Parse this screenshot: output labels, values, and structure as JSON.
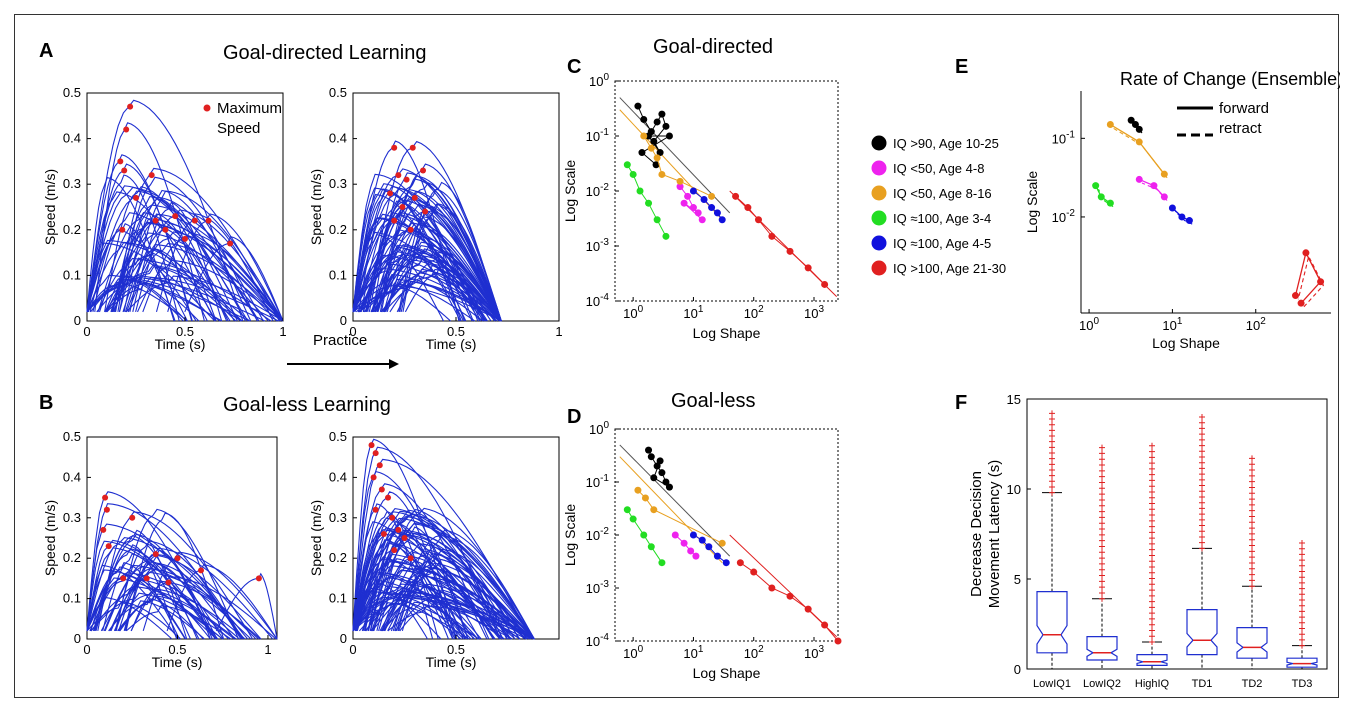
{
  "colors": {
    "curve": "#1f2fd0",
    "peak": "#e02020",
    "frame": "#333333"
  },
  "panels": {
    "A": {
      "letter": "A",
      "title": "Goal-directed Learning"
    },
    "B": {
      "letter": "B",
      "title": "Goal-less Learning"
    },
    "C": {
      "letter": "C",
      "title": "Goal-directed"
    },
    "D": {
      "letter": "D",
      "title": "Goal-less"
    },
    "E": {
      "letter": "E",
      "title": "Rate of Change (Ensemble)"
    },
    "F": {
      "letter": "F"
    }
  },
  "practice_label": "Practice",
  "legend_A": {
    "line1": "Maximum",
    "line2": "Speed"
  },
  "legend_C": [
    {
      "label": "IQ >90,    Age 10-25",
      "color": "#000000"
    },
    {
      "label": "IQ <50,    Age 4-8",
      "color": "#ee22ee"
    },
    {
      "label": "IQ <50,    Age 8-16",
      "color": "#e8a020"
    },
    {
      "label": "IQ ≈100,   Age 3-4",
      "color": "#22dd22"
    },
    {
      "label": "IQ ≈100,   Age 4-5",
      "color": "#1010dd"
    },
    {
      "label": "IQ >100, Age 21-30",
      "color": "#e02020"
    }
  ],
  "legend_E": {
    "forward": "forward",
    "retract": "retract"
  },
  "axis_text": {
    "time": "Time (s)",
    "speed": "Speed (m/s)",
    "log_scale": "Log Scale",
    "log_shape": "Log Shape",
    "f_ylabel1": "Decrease Decision",
    "f_ylabel2": "Movement Latency (s)",
    "speed_ticks": [
      "0",
      "0.1",
      "0.2",
      "0.3",
      "0.4",
      "0.5"
    ],
    "time_ticks": [
      "0",
      "0.5",
      "1"
    ],
    "time_ticks_short": [
      "0",
      "0.5"
    ],
    "log_y_ticks_C": [
      "10^0",
      "10^-1",
      "10^-2",
      "10^-3",
      "10^-4"
    ],
    "log_x_ticks": [
      "10^0",
      "10^1",
      "10^2",
      "10^3"
    ],
    "log_y_ticks_E": [
      "10^-1",
      "10^-2"
    ],
    "log_x_ticks_E": [
      "10^0",
      "10^1",
      "10^2"
    ],
    "f_y_ticks": [
      "0",
      "5",
      "10",
      "15"
    ]
  },
  "chart_data": [
    {
      "type": "line",
      "panel": "A-left",
      "xlabel": "Time (s)",
      "ylabel": "Speed (m/s)",
      "xlim": [
        0,
        1
      ],
      "ylim": [
        0,
        0.5
      ],
      "peaks": [
        {
          "x": 0.22,
          "y": 0.47
        },
        {
          "x": 0.2,
          "y": 0.42
        },
        {
          "x": 0.17,
          "y": 0.35
        },
        {
          "x": 0.19,
          "y": 0.33
        },
        {
          "x": 0.33,
          "y": 0.32
        },
        {
          "x": 0.25,
          "y": 0.27
        },
        {
          "x": 0.45,
          "y": 0.23
        },
        {
          "x": 0.55,
          "y": 0.22
        },
        {
          "x": 0.62,
          "y": 0.22
        },
        {
          "x": 0.73,
          "y": 0.17
        },
        {
          "x": 0.35,
          "y": 0.22
        },
        {
          "x": 0.18,
          "y": 0.2
        },
        {
          "x": 0.4,
          "y": 0.2
        },
        {
          "x": 0.5,
          "y": 0.18
        }
      ]
    },
    {
      "type": "line",
      "panel": "A-right",
      "xlabel": "Time (s)",
      "ylabel": "Speed (m/s)",
      "xlim": [
        0,
        1
      ],
      "ylim": [
        0,
        0.5
      ],
      "peaks": [
        {
          "x": 0.2,
          "y": 0.38
        },
        {
          "x": 0.29,
          "y": 0.38
        },
        {
          "x": 0.34,
          "y": 0.33
        },
        {
          "x": 0.22,
          "y": 0.32
        },
        {
          "x": 0.26,
          "y": 0.31
        },
        {
          "x": 0.18,
          "y": 0.28
        },
        {
          "x": 0.3,
          "y": 0.27
        },
        {
          "x": 0.24,
          "y": 0.25
        },
        {
          "x": 0.2,
          "y": 0.22
        },
        {
          "x": 0.35,
          "y": 0.24
        },
        {
          "x": 0.28,
          "y": 0.2
        }
      ]
    },
    {
      "type": "line",
      "panel": "B-left",
      "xlabel": "Time (s)",
      "ylabel": "Speed (m/s)",
      "xlim": [
        0,
        1.05
      ],
      "ylim": [
        0,
        0.5
      ],
      "peaks": [
        {
          "x": 0.1,
          "y": 0.35
        },
        {
          "x": 0.11,
          "y": 0.32
        },
        {
          "x": 0.25,
          "y": 0.3
        },
        {
          "x": 0.09,
          "y": 0.27
        },
        {
          "x": 0.12,
          "y": 0.23
        },
        {
          "x": 0.38,
          "y": 0.21
        },
        {
          "x": 0.5,
          "y": 0.2
        },
        {
          "x": 0.63,
          "y": 0.17
        },
        {
          "x": 0.95,
          "y": 0.15
        },
        {
          "x": 0.2,
          "y": 0.15
        },
        {
          "x": 0.33,
          "y": 0.15
        },
        {
          "x": 0.45,
          "y": 0.14
        }
      ]
    },
    {
      "type": "line",
      "panel": "B-right",
      "xlabel": "Time (s)",
      "ylabel": "Speed (m/s)",
      "xlim": [
        0,
        1
      ],
      "ylim": [
        0,
        0.5
      ],
      "peaks": [
        {
          "x": 0.09,
          "y": 0.48
        },
        {
          "x": 0.11,
          "y": 0.46
        },
        {
          "x": 0.13,
          "y": 0.43
        },
        {
          "x": 0.1,
          "y": 0.4
        },
        {
          "x": 0.14,
          "y": 0.37
        },
        {
          "x": 0.17,
          "y": 0.35
        },
        {
          "x": 0.11,
          "y": 0.32
        },
        {
          "x": 0.19,
          "y": 0.3
        },
        {
          "x": 0.22,
          "y": 0.27
        },
        {
          "x": 0.15,
          "y": 0.26
        },
        {
          "x": 0.25,
          "y": 0.25
        },
        {
          "x": 0.2,
          "y": 0.22
        },
        {
          "x": 0.28,
          "y": 0.2
        }
      ]
    },
    {
      "type": "scatter",
      "panel": "C",
      "title": "Goal-directed",
      "xlabel": "Log Shape",
      "ylabel": "Log Scale",
      "xlog": true,
      "ylog": true,
      "xlim": [
        0.5,
        2500
      ],
      "ylim": [
        0.0001,
        1
      ],
      "series": [
        {
          "name": "IQ >90,    Age 10-25",
          "color": "#000000",
          "points": [
            [
              1.2,
              0.35
            ],
            [
              1.5,
              0.2
            ],
            [
              2,
              0.12
            ],
            [
              2.5,
              0.18
            ],
            [
              3,
              0.25
            ],
            [
              3.5,
              0.15
            ],
            [
              2.2,
              0.08
            ],
            [
              2.8,
              0.05
            ],
            [
              1.8,
              0.1
            ],
            [
              4,
              0.1
            ],
            [
              1.4,
              0.05
            ],
            [
              2.4,
              0.03
            ]
          ]
        },
        {
          "name": "IQ <50,    Age 4-8",
          "color": "#ee22ee",
          "points": [
            [
              6,
              0.012
            ],
            [
              8,
              0.008
            ],
            [
              10,
              0.005
            ],
            [
              12,
              0.004
            ],
            [
              7,
              0.006
            ],
            [
              14,
              0.003
            ]
          ]
        },
        {
          "name": "IQ <50,    Age 8-16",
          "color": "#e8a020",
          "points": [
            [
              1.5,
              0.1
            ],
            [
              2,
              0.06
            ],
            [
              2.5,
              0.04
            ],
            [
              3,
              0.02
            ],
            [
              6,
              0.015
            ],
            [
              20,
              0.008
            ]
          ]
        },
        {
          "name": "IQ ≈100,   Age 3-4",
          "color": "#22dd22",
          "points": [
            [
              0.8,
              0.03
            ],
            [
              1,
              0.02
            ],
            [
              1.3,
              0.01
            ],
            [
              1.8,
              0.006
            ],
            [
              2.5,
              0.003
            ],
            [
              3.5,
              0.0015
            ]
          ]
        },
        {
          "name": "IQ ≈100,   Age 4-5",
          "color": "#1010dd",
          "points": [
            [
              10,
              0.01
            ],
            [
              15,
              0.007
            ],
            [
              20,
              0.005
            ],
            [
              25,
              0.004
            ],
            [
              30,
              0.003
            ]
          ]
        },
        {
          "name": "IQ >100, Age 21-30",
          "color": "#e02020",
          "points": [
            [
              50,
              0.008
            ],
            [
              80,
              0.005
            ],
            [
              120,
              0.003
            ],
            [
              200,
              0.0015
            ],
            [
              400,
              0.0008
            ],
            [
              800,
              0.0004
            ],
            [
              1500,
              0.0002
            ]
          ]
        }
      ]
    },
    {
      "type": "scatter",
      "panel": "D",
      "title": "Goal-less",
      "xlabel": "Log Shape",
      "ylabel": "Log Scale",
      "xlog": true,
      "ylog": true,
      "xlim": [
        0.5,
        2500
      ],
      "ylim": [
        0.0001,
        1
      ],
      "series": [
        {
          "name": "IQ >90,    Age 10-25",
          "color": "#000000",
          "points": [
            [
              1.8,
              0.4
            ],
            [
              2,
              0.3
            ],
            [
              2.5,
              0.2
            ],
            [
              3,
              0.15
            ],
            [
              3.5,
              0.1
            ],
            [
              4,
              0.08
            ],
            [
              2.2,
              0.12
            ],
            [
              2.8,
              0.25
            ]
          ]
        },
        {
          "name": "IQ <50,    Age 4-8",
          "color": "#ee22ee",
          "points": [
            [
              5,
              0.01
            ],
            [
              7,
              0.007
            ],
            [
              9,
              0.005
            ],
            [
              11,
              0.004
            ]
          ]
        },
        {
          "name": "IQ <50,    Age 8-16",
          "color": "#e8a020",
          "points": [
            [
              1.2,
              0.07
            ],
            [
              1.6,
              0.05
            ],
            [
              2.2,
              0.03
            ],
            [
              30,
              0.007
            ]
          ]
        },
        {
          "name": "IQ ≈100,   Age 3-4",
          "color": "#22dd22",
          "points": [
            [
              0.8,
              0.03
            ],
            [
              1,
              0.02
            ],
            [
              1.5,
              0.01
            ],
            [
              2,
              0.006
            ],
            [
              3,
              0.003
            ]
          ]
        },
        {
          "name": "IQ ≈100,   Age 4-5",
          "color": "#1010dd",
          "points": [
            [
              10,
              0.01
            ],
            [
              14,
              0.008
            ],
            [
              18,
              0.006
            ],
            [
              25,
              0.004
            ],
            [
              35,
              0.003
            ]
          ]
        },
        {
          "name": "IQ >100, Age 21-30",
          "color": "#e02020",
          "points": [
            [
              60,
              0.003
            ],
            [
              100,
              0.002
            ],
            [
              200,
              0.001
            ],
            [
              400,
              0.0007
            ],
            [
              800,
              0.0004
            ],
            [
              1500,
              0.0002
            ],
            [
              2500,
              0.0001
            ]
          ]
        }
      ]
    },
    {
      "type": "line",
      "panel": "E",
      "title": "Rate of Change (Ensemble)",
      "xlabel": "Log Shape",
      "ylabel": "Log Scale",
      "xlog": true,
      "ylog": true,
      "xlim": [
        0.8,
        800
      ],
      "ylim": [
        0.0006,
        0.4
      ],
      "series": [
        {
          "name": "black",
          "color": "#000000",
          "points": [
            [
              3.2,
              0.17
            ],
            [
              3.6,
              0.15
            ],
            [
              4,
              0.13
            ]
          ]
        },
        {
          "name": "orange",
          "color": "#e8a020",
          "points": [
            [
              1.8,
              0.15
            ],
            [
              4,
              0.09
            ],
            [
              8,
              0.035
            ]
          ]
        },
        {
          "name": "green",
          "color": "#22dd22",
          "points": [
            [
              1.2,
              0.025
            ],
            [
              1.4,
              0.018
            ],
            [
              1.8,
              0.015
            ]
          ]
        },
        {
          "name": "magenta",
          "color": "#ee22ee",
          "points": [
            [
              4,
              0.03
            ],
            [
              6,
              0.025
            ],
            [
              8,
              0.018
            ]
          ]
        },
        {
          "name": "blue",
          "color": "#1010dd",
          "points": [
            [
              10,
              0.013
            ],
            [
              13,
              0.01
            ],
            [
              16,
              0.009
            ]
          ]
        },
        {
          "name": "red",
          "color": "#e02020",
          "points": [
            [
              300,
              0.001
            ],
            [
              400,
              0.0035
            ],
            [
              600,
              0.0015
            ],
            [
              350,
              0.0008
            ]
          ]
        }
      ]
    },
    {
      "type": "box",
      "panel": "F",
      "ylabel": "Decrease Decision Movement Latency (s)",
      "ylim": [
        0,
        15
      ],
      "categories": [
        "LowIQ1",
        "LowIQ2",
        "HighIQ",
        "TD1",
        "TD2",
        "TD3"
      ],
      "boxes": [
        {
          "min": 0,
          "q1": 0.9,
          "median": 1.9,
          "q3": 4.3,
          "max": 9.8,
          "outlier_max": 14.2
        },
        {
          "min": 0,
          "q1": 0.5,
          "median": 0.9,
          "q3": 1.8,
          "max": 3.9,
          "outlier_max": 12.3
        },
        {
          "min": 0,
          "q1": 0.2,
          "median": 0.4,
          "q3": 0.8,
          "max": 1.5,
          "outlier_max": 12.4
        },
        {
          "min": 0,
          "q1": 0.8,
          "median": 1.6,
          "q3": 3.3,
          "max": 6.7,
          "outlier_max": 14.0
        },
        {
          "min": 0,
          "q1": 0.6,
          "median": 1.2,
          "q3": 2.3,
          "max": 4.6,
          "outlier_max": 11.7
        },
        {
          "min": 0,
          "q1": 0.1,
          "median": 0.3,
          "q3": 0.6,
          "max": 1.3,
          "outlier_max": 7.0
        }
      ]
    }
  ]
}
